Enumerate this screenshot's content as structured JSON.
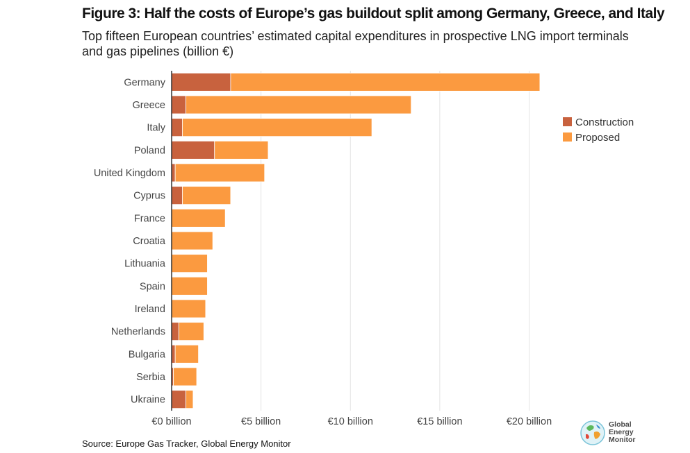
{
  "chart_data": {
    "type": "bar",
    "orientation": "horizontal",
    "stacked": true,
    "title": "Figure 3: Half the costs of Europe’s gas buildout split among Germany, Greece, and Italy",
    "subtitle": "Top fifteen European countries’ estimated capital expenditures in prospective LNG import terminals and gas pipelines (billion €)",
    "categories": [
      "Germany",
      "Greece",
      "Italy",
      "Poland",
      "United Kingdom",
      "Cyprus",
      "France",
      "Croatia",
      "Lithuania",
      "Spain",
      "Ireland",
      "Netherlands",
      "Bulgaria",
      "Serbia",
      "Ukraine"
    ],
    "series": [
      {
        "name": "Construction",
        "color": "#c8623e",
        "values": [
          3.3,
          0.8,
          0.6,
          2.4,
          0.2,
          0.6,
          0.0,
          0.0,
          0.0,
          0.0,
          0.0,
          0.4,
          0.2,
          0.1,
          0.8
        ]
      },
      {
        "name": "Proposed",
        "color": "#fb9a40",
        "values": [
          17.3,
          12.6,
          10.6,
          3.0,
          5.0,
          2.7,
          3.0,
          2.3,
          2.0,
          2.0,
          1.9,
          1.4,
          1.3,
          1.3,
          0.4
        ]
      }
    ],
    "xlim": [
      0,
      21
    ],
    "xticks": [
      0,
      5,
      10,
      15,
      20
    ],
    "xtick_labels": [
      "€0 billion",
      "€5 billion",
      "€10 billion",
      "€15 billion",
      "€20 billion"
    ],
    "grid": true,
    "legend_position": "right"
  },
  "source": "Source: Europe Gas Tracker, Global Energy Monitor",
  "logo": {
    "line1": "Global",
    "line2": "Energy",
    "line3": "Monitor"
  }
}
